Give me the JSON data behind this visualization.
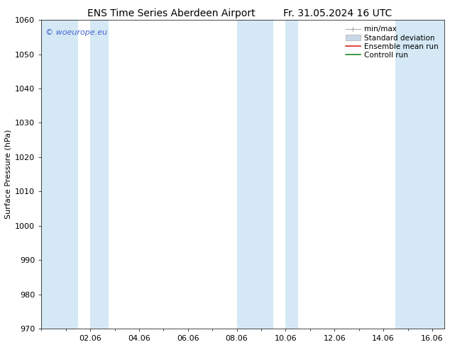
{
  "title": "ENS Time Series Aberdeen Airport",
  "title2": "Fr. 31.05.2024 16 UTC",
  "ylabel": "Surface Pressure (hPa)",
  "ylim": [
    970,
    1060
  ],
  "yticks": [
    970,
    980,
    990,
    1000,
    1010,
    1020,
    1030,
    1040,
    1050,
    1060
  ],
  "xlim_start": 0.0,
  "xlim_end": 16.5,
  "xtick_labels": [
    "02.06",
    "04.06",
    "06.06",
    "08.06",
    "10.06",
    "12.06",
    "14.06",
    "16.06"
  ],
  "xtick_positions": [
    2,
    4,
    6,
    8,
    10,
    12,
    14,
    16
  ],
  "shaded_bands": [
    {
      "x_start": 0.0,
      "x_end": 1.5
    },
    {
      "x_start": 2.0,
      "x_end": 2.75
    },
    {
      "x_start": 8.0,
      "x_end": 9.5
    },
    {
      "x_start": 10.0,
      "x_end": 10.5
    },
    {
      "x_start": 14.5,
      "x_end": 16.5
    }
  ],
  "band_color": "#d4e8f5",
  "watermark_text": "© woeurope.eu",
  "watermark_color": "#4466cc",
  "legend_items": [
    {
      "label": "min/max",
      "color": "#aaaaaa",
      "type": "errorbar"
    },
    {
      "label": "Standard deviation",
      "color": "#c8d8e8",
      "type": "box"
    },
    {
      "label": "Ensemble mean run",
      "color": "#dd2222",
      "type": "line"
    },
    {
      "label": "Controll run",
      "color": "#228822",
      "type": "line"
    }
  ],
  "bg_color": "#ffffff",
  "title_fontsize": 10,
  "axis_label_fontsize": 8,
  "tick_fontsize": 8,
  "legend_fontsize": 7.5
}
